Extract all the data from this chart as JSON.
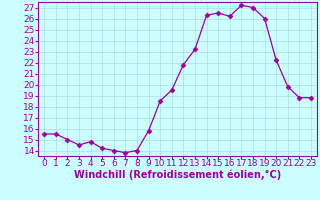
{
  "x": [
    0,
    1,
    2,
    3,
    4,
    5,
    6,
    7,
    8,
    9,
    10,
    11,
    12,
    13,
    14,
    15,
    16,
    17,
    18,
    19,
    20,
    21,
    22,
    23
  ],
  "y": [
    15.5,
    15.5,
    15.0,
    14.5,
    14.8,
    14.2,
    14.0,
    13.8,
    14.0,
    15.8,
    18.5,
    19.5,
    21.8,
    23.2,
    26.3,
    26.5,
    26.2,
    27.2,
    27.0,
    26.0,
    22.2,
    19.8,
    18.8,
    18.8
  ],
  "line_color": "#990099",
  "marker": "D",
  "marker_size": 2.5,
  "bg_color": "#ccffff",
  "grid_color": "#aadddd",
  "xlabel": "Windchill (Refroidissement éolien,°C)",
  "xlabel_fontsize": 7,
  "ylabel_ticks": [
    14,
    15,
    16,
    17,
    18,
    19,
    20,
    21,
    22,
    23,
    24,
    25,
    26,
    27
  ],
  "xlim": [
    -0.5,
    23.5
  ],
  "ylim": [
    13.5,
    27.5
  ],
  "tick_fontsize": 6.5
}
